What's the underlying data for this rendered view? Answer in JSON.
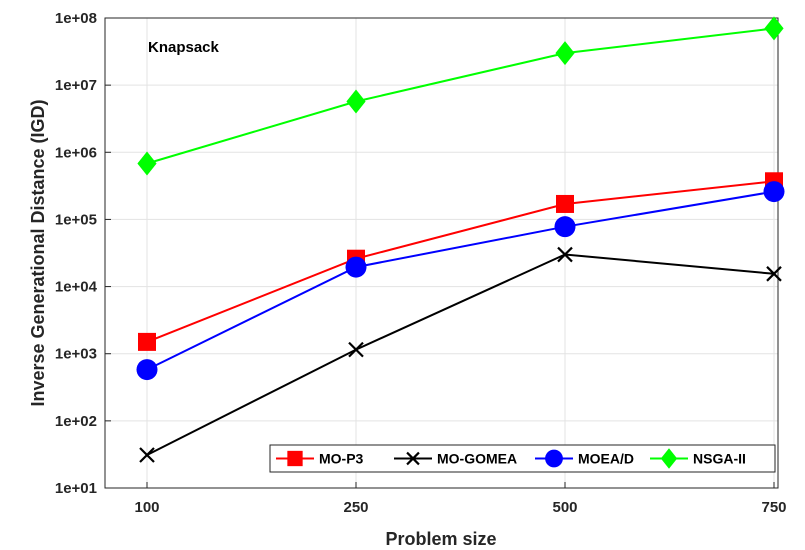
{
  "chart_data": {
    "type": "line",
    "annotation": "Knapsack",
    "xlabel": "Problem size",
    "ylabel": "Inverse Generational Distance (IGD)",
    "yscale": "log",
    "ylim": [
      10,
      100000000
    ],
    "x_ticks": [
      "100",
      "250",
      "500",
      "750"
    ],
    "y_ticks": [
      "1e+01",
      "1e+02",
      "1e+03",
      "1e+04",
      "1e+05",
      "1e+06",
      "1e+07",
      "1e+08"
    ],
    "grid": true,
    "legend_position": "bottom-right",
    "categories": [
      100,
      250,
      500,
      750
    ],
    "series": [
      {
        "name": "MO-P3",
        "color": "#ff0000",
        "marker": "square",
        "values": [
          1500,
          26000,
          170000,
          370000
        ]
      },
      {
        "name": "MO-GOMEA",
        "color": "#000000",
        "marker": "x",
        "values": [
          31,
          1150,
          30000,
          15500
        ]
      },
      {
        "name": "MOEA/D",
        "color": "#0000ff",
        "marker": "circle",
        "values": [
          580,
          19500,
          78000,
          260000
        ]
      },
      {
        "name": "NSGA-II",
        "color": "#00ff00",
        "marker": "diamond",
        "values": [
          680000,
          5700000,
          30000000,
          70000000
        ]
      }
    ]
  }
}
